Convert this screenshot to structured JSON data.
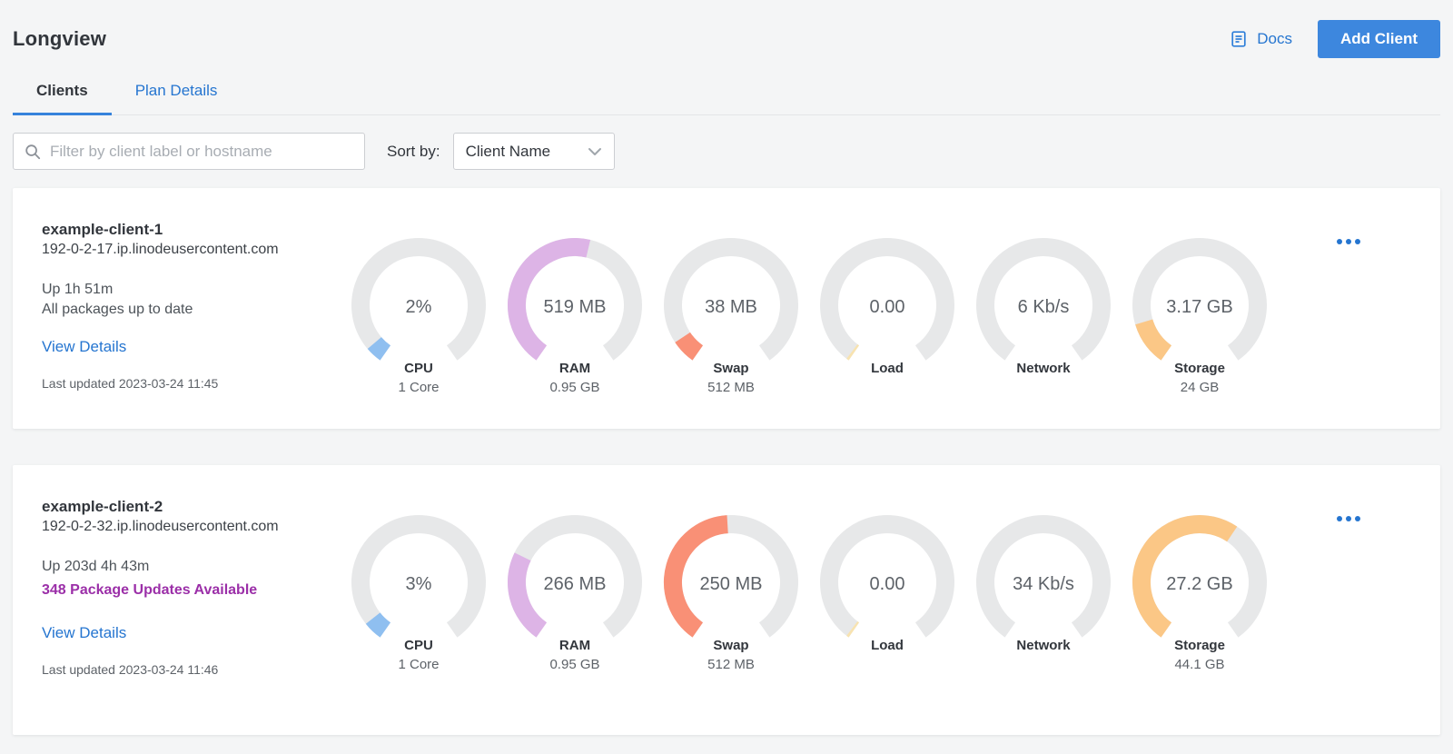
{
  "header": {
    "title": "Longview",
    "docs_label": "Docs",
    "add_client_label": "Add Client"
  },
  "tabs": [
    {
      "label": "Clients",
      "active": true
    },
    {
      "label": "Plan Details",
      "active": false
    }
  ],
  "filter": {
    "placeholder": "Filter by client label or hostname",
    "sort_label": "Sort by:",
    "sort_value": "Client Name"
  },
  "colors": {
    "accent_blue": "#3683dc",
    "link_blue": "#2575d0",
    "button_blue": "#3d87de",
    "alert_purple": "#9b2fa8",
    "gauge_track": "#e7e8e9",
    "gauge_cpu": "#8fbff0",
    "gauge_ram": "#ddb4e6",
    "gauge_swap": "#f99076",
    "gauge_load": "#f8e3b0",
    "gauge_storage": "#fbc786",
    "page_bg": "#f4f5f6"
  },
  "clients": [
    {
      "name": "example-client-1",
      "hostname": "192-0-2-17.ip.linodeusercontent.com",
      "uptime": "Up 1h 51m",
      "packages": "All packages up to date",
      "view_details_label": "View Details",
      "last_updated": "Last updated 2023-03-24 11:45",
      "gauges": [
        {
          "value": "2%",
          "label": "CPU",
          "sublabel": "1 Core",
          "fraction": 0.05,
          "color": "#8fbff0"
        },
        {
          "value": "519 MB",
          "label": "RAM",
          "sublabel": "0.95 GB",
          "fraction": 0.546,
          "color": "#ddb4e6"
        },
        {
          "value": "38 MB",
          "label": "Swap",
          "sublabel": "512 MB",
          "fraction": 0.074,
          "color": "#f99076"
        },
        {
          "value": "0.00",
          "label": "Load",
          "sublabel": "",
          "fraction": 0.008,
          "color": "#f8e3b0"
        },
        {
          "value": "6 Kb/s",
          "label": "Network",
          "sublabel": "",
          "fraction": 0,
          "color": "#8fbff0"
        },
        {
          "value": "3.17 GB",
          "label": "Storage",
          "sublabel": "24 GB",
          "fraction": 0.132,
          "color": "#fbc786"
        }
      ]
    },
    {
      "name": "example-client-2",
      "hostname": "192-0-2-32.ip.linodeusercontent.com",
      "uptime": "Up 203d 4h 43m",
      "packages": "348 Package Updates Available",
      "view_details_label": "View Details",
      "last_updated": "Last updated 2023-03-24 11:46",
      "gauges": [
        {
          "value": "3%",
          "label": "CPU",
          "sublabel": "1 Core",
          "fraction": 0.058,
          "color": "#8fbff0"
        },
        {
          "value": "266 MB",
          "label": "RAM",
          "sublabel": "0.95 GB",
          "fraction": 0.28,
          "color": "#ddb4e6"
        },
        {
          "value": "250 MB",
          "label": "Swap",
          "sublabel": "512 MB",
          "fraction": 0.488,
          "color": "#f99076"
        },
        {
          "value": "0.00",
          "label": "Load",
          "sublabel": "",
          "fraction": 0.008,
          "color": "#f8e3b0"
        },
        {
          "value": "34 Kb/s",
          "label": "Network",
          "sublabel": "",
          "fraction": 0,
          "color": "#8fbff0"
        },
        {
          "value": "27.2 GB",
          "label": "Storage",
          "sublabel": "44.1 GB",
          "fraction": 0.617,
          "color": "#fbc786"
        }
      ]
    }
  ]
}
